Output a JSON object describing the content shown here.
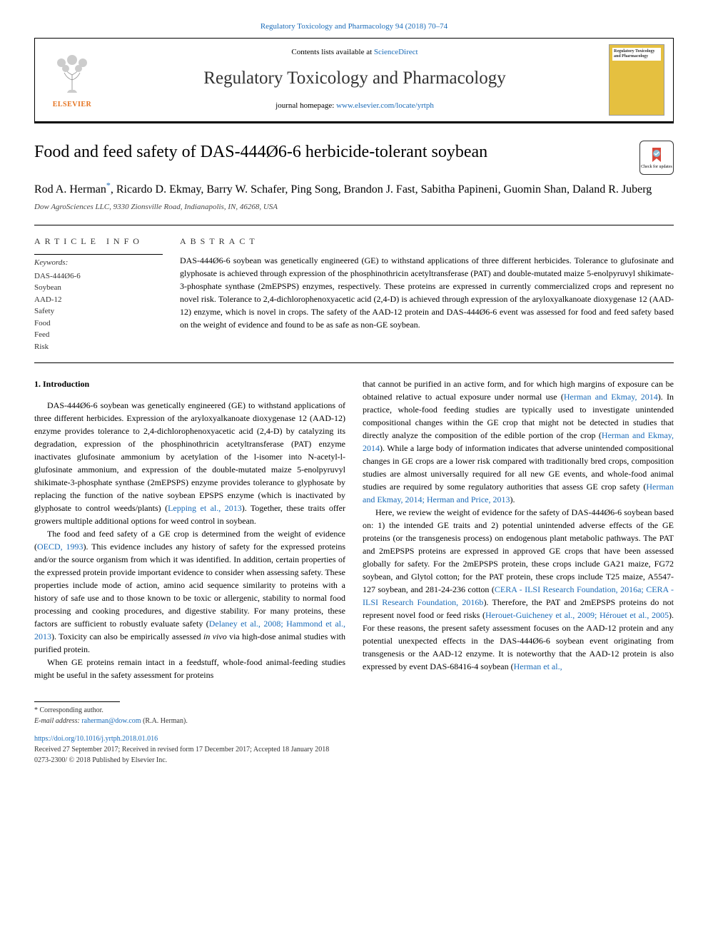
{
  "citation": "Regulatory Toxicology and Pharmacology 94 (2018) 70–74",
  "header": {
    "contents_prefix": "Contents lists available at ",
    "contents_link": "ScienceDirect",
    "journal_name": "Regulatory Toxicology and Pharmacology",
    "homepage_prefix": "journal homepage: ",
    "homepage_link": "www.elsevier.com/locate/yrtph",
    "elsevier_label": "ELSEVIER",
    "cover_title": "Regulatory Toxicology and Pharmacology"
  },
  "check_updates": "Check for updates",
  "title": "Food and feed safety of DAS-444Ø6-6 herbicide-tolerant soybean",
  "authors": "Rod A. Herman*, Ricardo D. Ekmay, Barry W. Schafer, Ping Song, Brandon J. Fast, Sabitha Papineni, Guomin Shan, Daland R. Juberg",
  "affiliation": "Dow AgroSciences LLC, 9330 Zionsville Road, Indianapolis, IN, 46268, USA",
  "info_label": "ARTICLE INFO",
  "abstract_label": "ABSTRACT",
  "keywords_label": "Keywords:",
  "keywords": [
    "DAS-444Ø6-6",
    "Soybean",
    "AAD-12",
    "Safety",
    "Food",
    "Feed",
    "Risk"
  ],
  "abstract": "DAS-444Ø6-6 soybean was genetically engineered (GE) to withstand applications of three different herbicides. Tolerance to glufosinate and glyphosate is achieved through expression of the phosphinothricin acetyltransferase (PAT) and double-mutated maize 5-enolpyruvyl shikimate-3-phosphate synthase (2mEPSPS) enzymes, respectively. These proteins are expressed in currently commercialized crops and represent no novel risk. Tolerance to 2,4-dichlorophenoxyacetic acid (2,4-D) is achieved through expression of the aryloxyalkanoate dioxygenase 12 (AAD-12) enzyme, which is novel in crops. The safety of the AAD-12 protein and DAS-444Ø6-6 event was assessed for food and feed safety based on the weight of evidence and found to be as safe as non-GE soybean.",
  "intro_heading": "1. Introduction",
  "left_paragraphs": [
    "DAS-444Ø6-6 soybean was genetically engineered (GE) to withstand applications of three different herbicides. Expression of the aryloxyalkanoate dioxygenase 12 (AAD-12) enzyme provides tolerance to 2,4-dichlorophenoxyacetic acid (2,4-D) by catalyzing its degradation, expression of the phosphinothricin acetyltransferase (PAT) enzyme inactivates glufosinate ammonium by acetylation of the l-isomer into N-acetyl-l-glufosinate ammonium, and expression of the double-mutated maize 5-enolpyruvyl shikimate-3-phosphate synthase (2mEPSPS) enzyme provides tolerance to glyphosate by replacing the function of the native soybean EPSPS enzyme (which is inactivated by glyphosate to control weeds/plants) (<span class=\"cite-link\">Lepping et al., 2013</span>). Together, these traits offer growers multiple additional options for weed control in soybean.",
    "The food and feed safety of a GE crop is determined from the weight of evidence (<span class=\"cite-link\">OECD, 1993</span>). This evidence includes any history of safety for the expressed proteins and/or the source organism from which it was identified. In addition, certain properties of the expressed protein provide important evidence to consider when assessing safety. These properties include mode of action, amino acid sequence similarity to proteins with a history of safe use and to those known to be toxic or allergenic, stability to normal food processing and cooking procedures, and digestive stability. For many proteins, these factors are sufficient to robustly evaluate safety (<span class=\"cite-link\">Delaney et al., 2008; Hammond et al., 2013</span>). Toxicity can also be empirically assessed <i>in vivo</i> via high-dose animal studies with purified protein.",
    "When GE proteins remain intact in a feedstuff, whole-food animal-feeding studies might be useful in the safety assessment for proteins"
  ],
  "right_paragraphs": [
    "that cannot be purified in an active form, and for which high margins of exposure can be obtained relative to actual exposure under normal use (<span class=\"cite-link\">Herman and Ekmay, 2014</span>). In practice, whole-food feeding studies are typically used to investigate unintended compositional changes within the GE crop that might not be detected in studies that directly analyze the composition of the edible portion of the crop (<span class=\"cite-link\">Herman and Ekmay, 2014</span>). While a large body of information indicates that adverse unintended compositional changes in GE crops are a lower risk compared with traditionally bred crops, composition studies are almost universally required for all new GE events, and whole-food animal studies are required by some regulatory authorities that assess GE crop safety (<span class=\"cite-link\">Herman and Ekmay, 2014; Herman and Price, 2013</span>).",
    "Here, we review the weight of evidence for the safety of DAS-444Ø6-6 soybean based on: 1) the intended GE traits and 2) potential unintended adverse effects of the GE proteins (or the transgenesis process) on endogenous plant metabolic pathways. The PAT and 2mEPSPS proteins are expressed in approved GE crops that have been assessed globally for safety. For the 2mEPSPS protein, these crops include GA21 maize, FG72 soybean, and Glytol cotton; for the PAT protein, these crops include T25 maize, A5547-127 soybean, and 281-24-236 cotton (<span class=\"cite-link\">CERA - ILSI Research Foundation, 2016a; CERA - ILSI Research Foundation, 2016b</span>). Therefore, the PAT and 2mEPSPS proteins do not represent novel food or feed risks (<span class=\"cite-link\">Herouet-Guicheney et al., 2009; Hérouet et al., 2005</span>). For these reasons, the present safety assessment focuses on the AAD-12 protein and any potential unexpected effects in the DAS-444Ø6-6 soybean event originating from transgenesis or the AAD-12 enzyme. It is noteworthy that the AAD-12 protein is also expressed by event DAS-68416-4 soybean (<span class=\"cite-link\">Herman et al.,</span>"
  ],
  "footer": {
    "corr_label": "* Corresponding author.",
    "email_label": "E-mail address: ",
    "email": "raherman@dow.com",
    "email_suffix": " (R.A. Herman).",
    "doi": "https://doi.org/10.1016/j.yrtph.2018.01.016",
    "received": "Received 27 September 2017; Received in revised form 17 December 2017; Accepted 18 January 2018",
    "copyright": "0273-2300/ © 2018 Published by Elsevier Inc."
  },
  "colors": {
    "link": "#1a6bb8",
    "elsevier_orange": "#e5721f",
    "cover_yellow": "#e5c040",
    "text": "#000000",
    "muted": "#333333"
  }
}
